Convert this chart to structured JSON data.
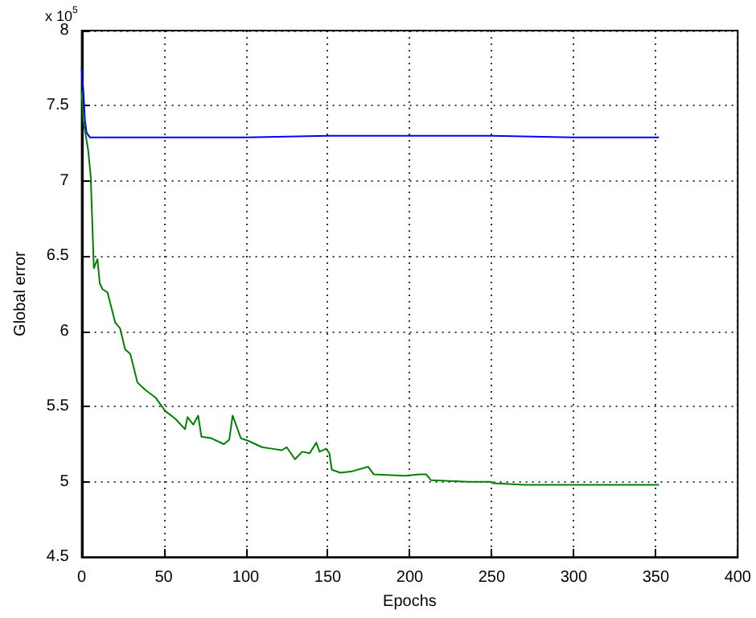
{
  "chart_data": {
    "type": "line",
    "xlabel": "Epochs",
    "ylabel": "Global error",
    "annotations": [
      "x 10$^{5}$"
    ],
    "series": [
      {
        "color": "#0000ff",
        "x": [
          0,
          1,
          2,
          3,
          5,
          10,
          50,
          100,
          150,
          200,
          250,
          300,
          352
        ],
        "values": [
          7.75,
          7.6,
          7.4,
          7.32,
          7.29,
          7.29,
          7.29,
          7.29,
          7.3,
          7.3,
          7.3,
          7.29,
          7.29
        ]
      },
      {
        "color": "#008000",
        "x": [
          0,
          1,
          4,
          5.5,
          7.4,
          8.5,
          9.6,
          11,
          12.7,
          15.7,
          20.4,
          23.4,
          26.5,
          29.6,
          34,
          38.9,
          45,
          51,
          57,
          63,
          64.5,
          68,
          71,
          73,
          79,
          86.7,
          90,
          92,
          94.4,
          97,
          102,
          110,
          116,
          122,
          125,
          130,
          134.5,
          139,
          143,
          145,
          149,
          151,
          152.5,
          157.7,
          165,
          174.7,
          178,
          197,
          206,
          210,
          213,
          236,
          249,
          251,
          270,
          301,
          352
        ],
        "values": [
          7.6,
          7.4,
          7.2,
          7.03,
          6.42,
          6.45,
          6.48,
          6.32,
          6.28,
          6.26,
          6.06,
          6.02,
          5.88,
          5.85,
          5.66,
          5.61,
          5.56,
          5.47,
          5.42,
          5.35,
          5.43,
          5.38,
          5.44,
          5.3,
          5.29,
          5.25,
          5.28,
          5.44,
          5.37,
          5.29,
          5.27,
          5.23,
          5.22,
          5.21,
          5.23,
          5.15,
          5.2,
          5.19,
          5.26,
          5.2,
          5.22,
          5.19,
          5.08,
          5.06,
          5.07,
          5.1,
          5.05,
          5.04,
          5.05,
          5.05,
          5.01,
          5.0,
          5.0,
          4.99,
          4.98,
          4.98,
          4.98
        ]
      }
    ],
    "xlim": [
      0,
      400
    ],
    "xticks": [
      0,
      50,
      100,
      150,
      200,
      250,
      300,
      350,
      400
    ],
    "ylim": [
      4.5,
      8
    ],
    "yticks": [
      4.5,
      5,
      5.5,
      6,
      6.5,
      7,
      7.5,
      8
    ],
    "grid": true,
    "marker": "none",
    "line_style": "solid"
  }
}
